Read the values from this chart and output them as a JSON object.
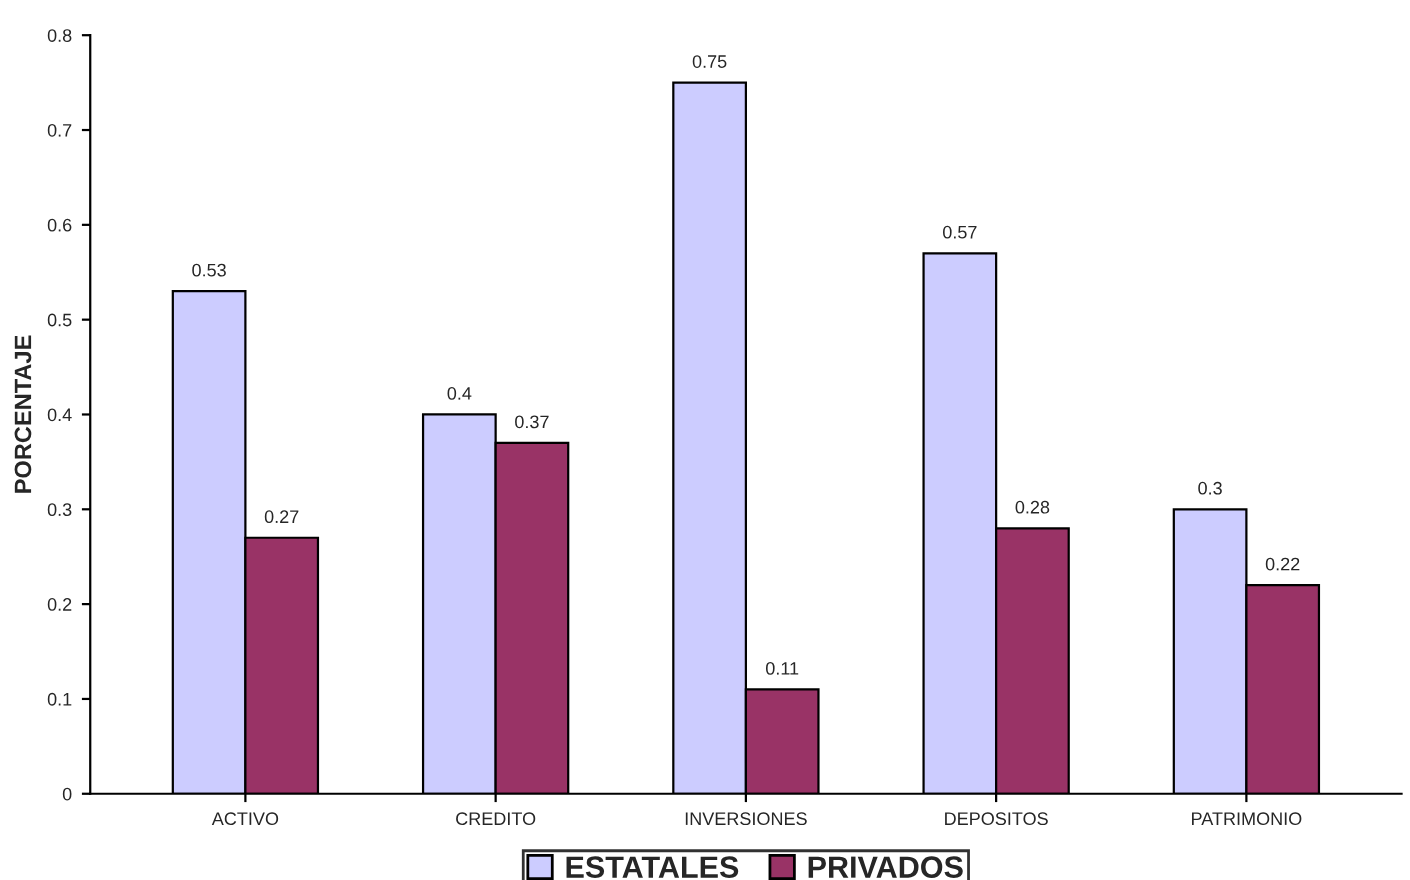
{
  "chart_data": {
    "type": "bar",
    "ylabel": "PORCENTAJE",
    "categories": [
      "ACTIVO",
      "CREDITO",
      "INVERSIONES",
      "DEPOSITOS",
      "PATRIMONIO"
    ],
    "series": [
      {
        "name": "ESTATALES",
        "color": "#ccccff",
        "values": [
          0.53,
          0.4,
          0.75,
          0.57,
          0.3
        ]
      },
      {
        "name": "PRIVADOS",
        "color": "#993366",
        "values": [
          0.27,
          0.37,
          0.11,
          0.28,
          0.22
        ]
      }
    ],
    "ylim": [
      0,
      0.8
    ],
    "yticks": [
      0,
      0.1,
      0.2,
      0.3,
      0.4,
      0.5,
      0.6,
      0.7,
      0.8
    ],
    "data_labels": true,
    "grid": false,
    "legend": "bottom"
  }
}
